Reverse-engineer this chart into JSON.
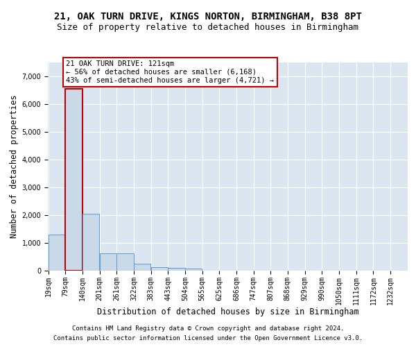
{
  "title_line1": "21, OAK TURN DRIVE, KINGS NORTON, BIRMINGHAM, B38 8PT",
  "title_line2": "Size of property relative to detached houses in Birmingham",
  "xlabel": "Distribution of detached houses by size in Birmingham",
  "ylabel": "Number of detached properties",
  "footnote1": "Contains HM Land Registry data © Crown copyright and database right 2024.",
  "footnote2": "Contains public sector information licensed under the Open Government Licence v3.0.",
  "annotation_line1": "21 OAK TURN DRIVE: 121sqm",
  "annotation_line2": "← 56% of detached houses are smaller (6,168)",
  "annotation_line3": "43% of semi-detached houses are larger (4,721) →",
  "property_size": 121,
  "bar_edges": [
    19,
    79,
    140,
    201,
    261,
    322,
    383,
    443,
    504,
    565,
    625,
    686,
    747,
    807,
    868,
    929,
    990,
    1050,
    1111,
    1172,
    1232
  ],
  "bar_heights": [
    1300,
    6550,
    2050,
    630,
    630,
    250,
    120,
    100,
    80,
    0,
    0,
    0,
    0,
    0,
    0,
    0,
    0,
    0,
    0,
    0,
    0
  ],
  "bar_color": "#c9d9e8",
  "bar_edgecolor": "#5b9bd5",
  "highlight_bar_index": 1,
  "highlight_edgecolor": "#c00000",
  "ylim": [
    0,
    7500
  ],
  "yticks": [
    0,
    1000,
    2000,
    3000,
    4000,
    5000,
    6000,
    7000
  ],
  "background_color": "#dce6f1",
  "grid_color": "#ffffff",
  "title_fontsize": 10,
  "subtitle_fontsize": 9,
  "axis_label_fontsize": 8.5,
  "tick_fontsize": 7,
  "annotation_fontsize": 7.5,
  "footnote_fontsize": 6.5
}
